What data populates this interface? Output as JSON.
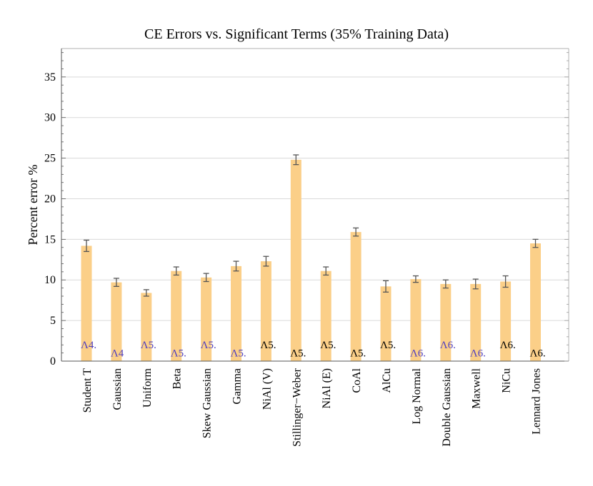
{
  "chart_data": {
    "type": "bar",
    "title": "CE Errors vs. Significant Terms (35% Training Data)",
    "xlabel": "",
    "ylabel": "Percent error %",
    "ylim": [
      0,
      38.5
    ],
    "yticks": [
      0,
      5,
      10,
      15,
      20,
      25,
      30,
      35
    ],
    "grid": true,
    "bar_color": "#fbcf88",
    "error_color": "#555555",
    "categories": [
      "Student T",
      "Gaussian",
      "Uniform",
      "Beta",
      "Skew Gaussian",
      "Gamma",
      "NiAl (V)",
      "Stillinger−Weber",
      "NiAl (E)",
      "CoAl",
      "AlCu",
      "Log Normal",
      "Double Gaussian",
      "Maxwell",
      "NiCu",
      "Lennard Jones"
    ],
    "values": [
      14.2,
      9.7,
      8.4,
      11.1,
      10.3,
      11.7,
      12.3,
      24.8,
      11.1,
      15.9,
      9.2,
      10.1,
      9.5,
      9.5,
      9.8,
      14.5
    ],
    "errors": [
      0.7,
      0.5,
      0.4,
      0.5,
      0.5,
      0.6,
      0.6,
      0.6,
      0.5,
      0.5,
      0.7,
      0.4,
      0.5,
      0.6,
      0.7,
      0.5
    ],
    "annotations": [
      {
        "text": "Λ4.",
        "y": 2.0,
        "color": "#5040c0"
      },
      {
        "text": "Λ4",
        "y": 1.0,
        "color": "#5040c0"
      },
      {
        "text": "Λ5.",
        "y": 2.0,
        "color": "#5040c0"
      },
      {
        "text": "Λ5.",
        "y": 1.0,
        "color": "#5040c0"
      },
      {
        "text": "Λ5.",
        "y": 2.0,
        "color": "#5040c0"
      },
      {
        "text": "Λ5.",
        "y": 1.0,
        "color": "#5040c0"
      },
      {
        "text": "Λ5.",
        "y": 2.0,
        "color": "#000000"
      },
      {
        "text": "Λ5.",
        "y": 1.0,
        "color": "#000000"
      },
      {
        "text": "Λ5.",
        "y": 2.0,
        "color": "#000000"
      },
      {
        "text": "Λ5.",
        "y": 1.0,
        "color": "#000000"
      },
      {
        "text": "Λ5.",
        "y": 2.0,
        "color": "#000000"
      },
      {
        "text": "Λ6.",
        "y": 1.0,
        "color": "#5040c0"
      },
      {
        "text": "Λ6.",
        "y": 2.0,
        "color": "#5040c0"
      },
      {
        "text": "Λ6.",
        "y": 1.0,
        "color": "#5040c0"
      },
      {
        "text": "Λ6.",
        "y": 2.0,
        "color": "#000000"
      },
      {
        "text": "Λ6.",
        "y": 1.0,
        "color": "#000000"
      }
    ]
  }
}
